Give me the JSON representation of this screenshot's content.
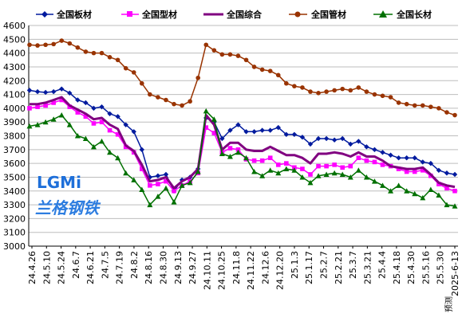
{
  "chart_data": {
    "type": "line",
    "ylim": [
      3000,
      4600
    ],
    "ytick_step": 100,
    "grid": true,
    "legend_position": "top",
    "x_tick_labels": [
      "24.4.26",
      "24.5.10",
      "24.5.24",
      "24.6.7",
      "24.6.21",
      "24.7.5",
      "24.7.19",
      "24.8.2",
      "24.8.16",
      "24.8.30",
      "24.9.13",
      "24.9.27",
      "24.10.11",
      "24.10.25",
      "24.11.8",
      "24.11.22",
      "24.12.6",
      "24.12.20",
      "25.1.3",
      "25.1.17",
      "25.2.7",
      "25.2.21",
      "25.3.7",
      "25.3.21",
      "25.4.4",
      "25.4.18",
      "25.4.30",
      "25.5.16",
      "25.5.30",
      "2025-6-13"
    ],
    "note": "预测",
    "series": [
      {
        "name": "全国板材",
        "color": "#001a9e",
        "marker": "diamond",
        "values": [
          4130,
          4120,
          4115,
          4120,
          4140,
          4110,
          4060,
          4040,
          4000,
          4010,
          3960,
          3940,
          3880,
          3830,
          3700,
          3500,
          3510,
          3520,
          3400,
          3480,
          3500,
          3560,
          3930,
          3900,
          3780,
          3840,
          3880,
          3830,
          3830,
          3840,
          3840,
          3860,
          3810,
          3810,
          3790,
          3740,
          3780,
          3780,
          3770,
          3780,
          3740,
          3760,
          3720,
          3700,
          3680,
          3660,
          3640,
          3640,
          3640,
          3610,
          3600,
          3550,
          3530,
          3520
        ]
      },
      {
        "name": "全国型材",
        "color": "#ff00ff",
        "marker": "square",
        "values": [
          4000,
          4010,
          4020,
          4040,
          4060,
          4010,
          3970,
          3940,
          3890,
          3900,
          3840,
          3810,
          3720,
          3680,
          3560,
          3440,
          3450,
          3470,
          3400,
          3440,
          3470,
          3530,
          3860,
          3820,
          3680,
          3710,
          3700,
          3630,
          3620,
          3620,
          3640,
          3590,
          3600,
          3570,
          3560,
          3520,
          3580,
          3580,
          3590,
          3570,
          3580,
          3640,
          3620,
          3610,
          3590,
          3580,
          3560,
          3540,
          3540,
          3550,
          3510,
          3450,
          3420,
          3400
        ]
      },
      {
        "name": "全国综合",
        "color": "#800080",
        "marker": "none",
        "values": [
          4030,
          4030,
          4040,
          4060,
          4080,
          4020,
          3990,
          3960,
          3920,
          3930,
          3880,
          3850,
          3730,
          3690,
          3590,
          3470,
          3480,
          3500,
          3420,
          3470,
          3500,
          3560,
          3950,
          3880,
          3700,
          3750,
          3750,
          3700,
          3690,
          3690,
          3720,
          3690,
          3660,
          3660,
          3640,
          3600,
          3670,
          3670,
          3680,
          3670,
          3650,
          3680,
          3650,
          3650,
          3620,
          3580,
          3570,
          3560,
          3560,
          3570,
          3520,
          3460,
          3440,
          3430
        ]
      },
      {
        "name": "全国管材",
        "color": "#993300",
        "marker": "circle",
        "values": [
          4460,
          4455,
          4460,
          4465,
          4490,
          4470,
          4440,
          4410,
          4400,
          4400,
          4370,
          4350,
          4290,
          4260,
          4180,
          4100,
          4080,
          4060,
          4030,
          4020,
          4050,
          4220,
          4460,
          4420,
          4390,
          4390,
          4380,
          4350,
          4300,
          4280,
          4270,
          4240,
          4180,
          4160,
          4150,
          4120,
          4110,
          4120,
          4130,
          4140,
          4130,
          4150,
          4120,
          4100,
          4090,
          4080,
          4040,
          4030,
          4020,
          4020,
          4010,
          4000,
          3970,
          3950
        ]
      },
      {
        "name": "全国长材",
        "color": "#007000",
        "marker": "triangle",
        "values": [
          3870,
          3880,
          3900,
          3920,
          3950,
          3880,
          3800,
          3780,
          3720,
          3760,
          3680,
          3640,
          3530,
          3480,
          3410,
          3300,
          3360,
          3420,
          3320,
          3440,
          3460,
          3540,
          3980,
          3920,
          3670,
          3650,
          3680,
          3640,
          3540,
          3510,
          3550,
          3530,
          3560,
          3550,
          3500,
          3460,
          3510,
          3520,
          3530,
          3520,
          3500,
          3550,
          3500,
          3470,
          3440,
          3400,
          3440,
          3400,
          3380,
          3350,
          3410,
          3370,
          3300,
          3290
        ]
      }
    ]
  },
  "legend": {
    "items": [
      {
        "label": "全国板材"
      },
      {
        "label": "全国型材"
      },
      {
        "label": "全国综合"
      },
      {
        "label": "全国管材"
      },
      {
        "label": "全国长材"
      }
    ]
  },
  "watermark": {
    "logo_text": "LGMi",
    "logo_cn": "兰格钢铁"
  }
}
